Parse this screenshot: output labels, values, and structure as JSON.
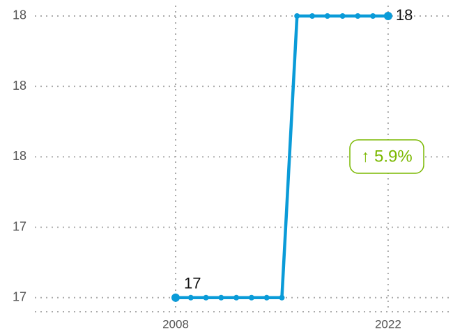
{
  "chart_data": {
    "type": "line",
    "x": [
      2008,
      2009,
      2010,
      2011,
      2012,
      2013,
      2014,
      2015,
      2016,
      2017,
      2018,
      2019,
      2020,
      2021,
      2022
    ],
    "values": [
      17,
      17,
      17,
      17,
      17,
      17,
      17,
      17,
      18,
      18,
      18,
      18,
      18,
      18,
      18
    ],
    "color": "#0a9bd8",
    "xlim": [
      1999,
      2026
    ],
    "xticks": [
      2008,
      2022
    ],
    "ylim": [
      16.95,
      18.05
    ],
    "yticks": [
      {
        "value": 17,
        "label": "17"
      },
      {
        "value": 17.25,
        "label": "17"
      },
      {
        "value": 17.5,
        "label": "18"
      },
      {
        "value": 17.75,
        "label": "18"
      },
      {
        "value": 18,
        "label": "18"
      }
    ],
    "grid": true,
    "annotation": "↑ 5.9%",
    "annotation_color": "#7ab800"
  }
}
